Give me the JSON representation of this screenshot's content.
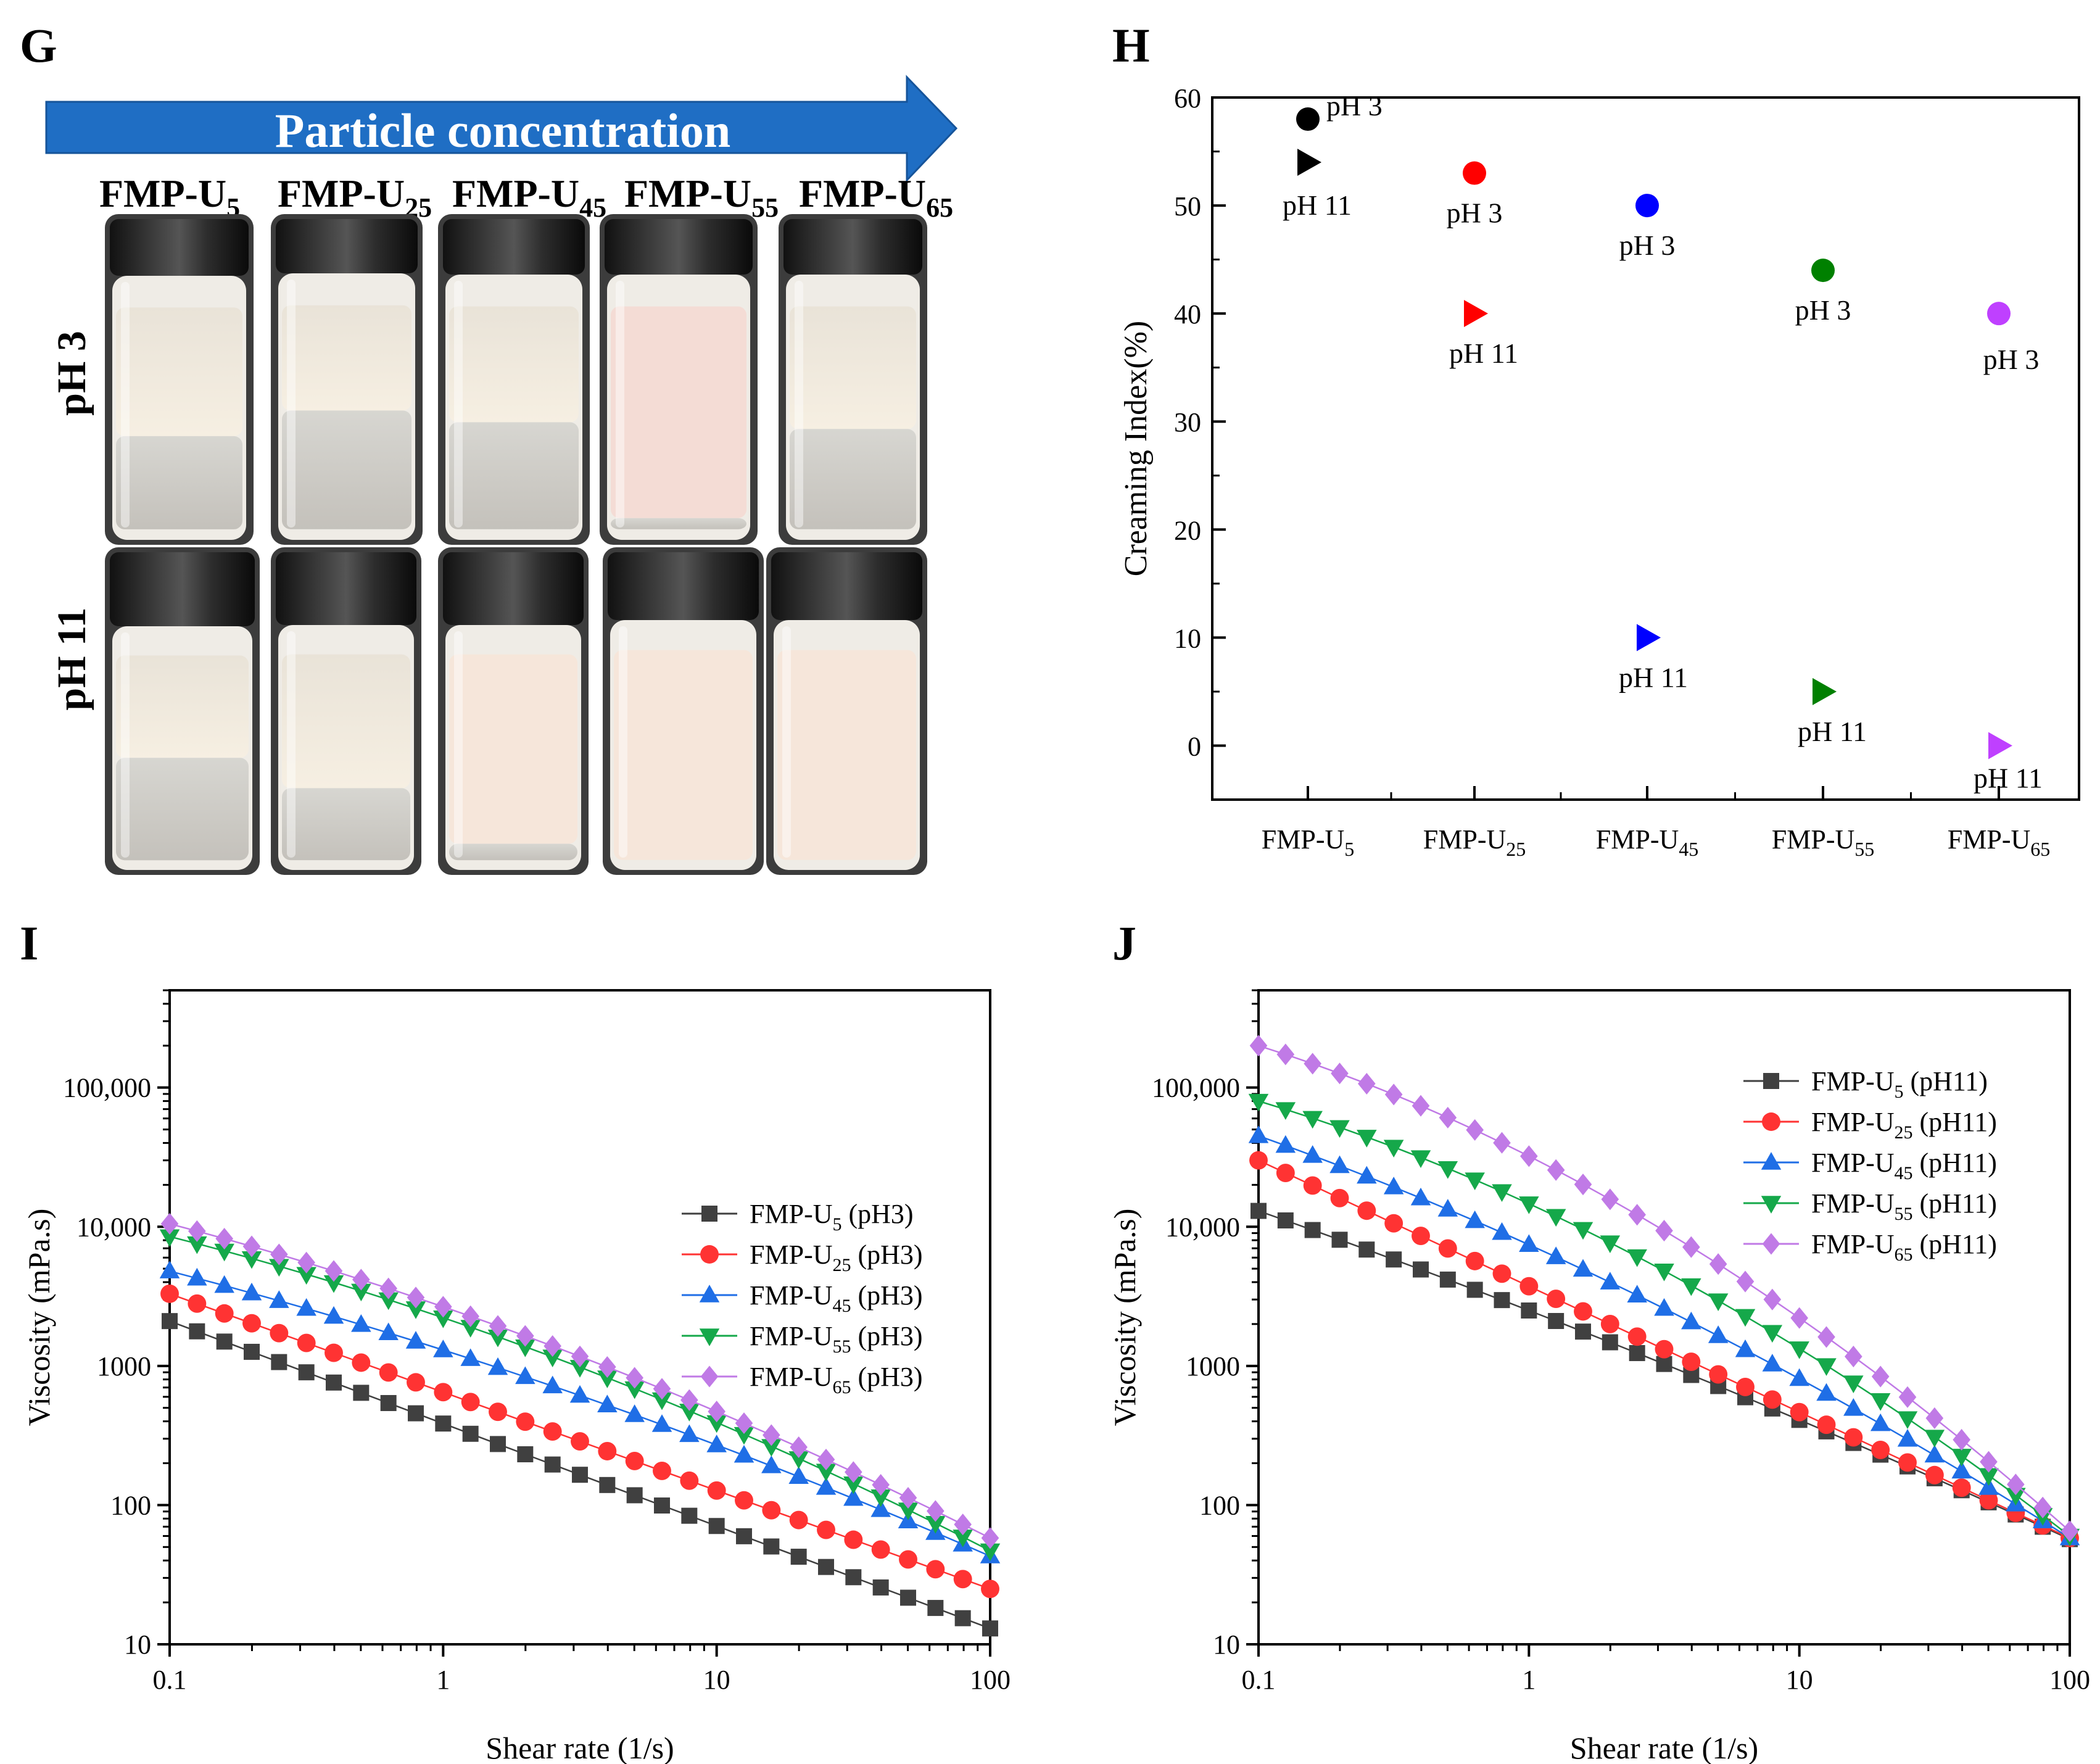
{
  "panels": {
    "G": {
      "label": "G",
      "arrow_text": "Particle concentration",
      "samples": [
        {
          "base": "FMP-U",
          "sub": "5"
        },
        {
          "base": "FMP-U",
          "sub": "25"
        },
        {
          "base": "FMP-U",
          "sub": "45"
        },
        {
          "base": "FMP-U",
          "sub": "55"
        },
        {
          "base": "FMP-U",
          "sub": "65"
        }
      ],
      "rows": [
        {
          "label": "pH 3"
        },
        {
          "label": "pH 11"
        }
      ]
    },
    "H": {
      "label": "H"
    },
    "I": {
      "label": "I"
    },
    "J": {
      "label": "J"
    }
  },
  "colors": {
    "arrow": "#1f6ec4",
    "black": "#000000",
    "red": "#ff0000",
    "blue": "#0000ff",
    "green": "#008000",
    "violet": "#bf40ff",
    "series_U5": "#404040",
    "series_U25": "#ff3333",
    "series_U45": "#1f6ee6",
    "series_U55": "#15a84a",
    "series_U65": "#c07ae6"
  },
  "chart_data": [
    {
      "id": "H",
      "type": "scatter",
      "ylabel": "Creaming Index(%)",
      "xlabel": "",
      "ylim": [
        -5,
        60
      ],
      "yticks": [
        "0",
        "10",
        "20",
        "30",
        "40",
        "50",
        "60"
      ],
      "categories": [
        {
          "base": "FMP-U",
          "sub": "5"
        },
        {
          "base": "FMP-U",
          "sub": "25"
        },
        {
          "base": "FMP-U",
          "sub": "45"
        },
        {
          "base": "FMP-U",
          "sub": "55"
        },
        {
          "base": "FMP-U",
          "sub": "65"
        }
      ],
      "series": [
        {
          "name": "pH 3",
          "marker": "circle",
          "values": [
            58,
            53,
            50,
            44,
            40
          ],
          "point_labels": [
            "pH 3",
            "pH 3",
            "pH 3",
            "pH 3",
            "pH 3"
          ],
          "colors": [
            "#000000",
            "#ff0000",
            "#0000ff",
            "#008000",
            "#bf40ff"
          ]
        },
        {
          "name": "pH 11",
          "marker": "triangle-right",
          "values": [
            54,
            40,
            10,
            5,
            0
          ],
          "point_labels": [
            "pH 11",
            "pH 11",
            "pH 11",
            "pH 11",
            "pH 11"
          ],
          "colors": [
            "#000000",
            "#ff0000",
            "#0000ff",
            "#008000",
            "#bf40ff"
          ]
        }
      ]
    },
    {
      "id": "I",
      "type": "line",
      "xscale": "log",
      "yscale": "log",
      "xlabel": "Shear rate (1/s)",
      "ylabel": "Viscosity (mPa.s)",
      "xlim": [
        0.1,
        100
      ],
      "ylim": [
        10,
        500000
      ],
      "xticks": [
        {
          "v": 0.1,
          "t": "0.1"
        },
        {
          "v": 1,
          "t": "1"
        },
        {
          "v": 10,
          "t": "10"
        },
        {
          "v": 100,
          "t": "100"
        }
      ],
      "yticks": [
        {
          "v": 10,
          "t": "10"
        },
        {
          "v": 100,
          "t": "100"
        },
        {
          "v": 1000,
          "t": "1000"
        },
        {
          "v": 10000,
          "t": "10,000"
        },
        {
          "v": 100000,
          "t": "100,000"
        }
      ],
      "series": [
        {
          "base": "FMP-U",
          "sub": "5",
          "suffix": "(pH3)",
          "color": "#404040",
          "marker": "square",
          "y0": 2100,
          "y1": 13,
          "mid": 0,
          "mf": 1
        },
        {
          "base": "FMP-U",
          "sub": "25",
          "suffix": "(pH3)",
          "color": "#ff3333",
          "marker": "circle",
          "y0": 3300,
          "y1": 25,
          "mid": 60,
          "mf": 1
        },
        {
          "base": "FMP-U",
          "sub": "45",
          "suffix": "(pH3)",
          "color": "#1f6ee6",
          "marker": "triangle-up",
          "y0": 4800,
          "y1": 43,
          "mid": 0,
          "mf": 1.35
        },
        {
          "base": "FMP-U",
          "sub": "55",
          "suffix": "(pH3)",
          "color": "#15a84a",
          "marker": "triangle-down",
          "y0": 8500,
          "y1": 47,
          "mid": 0,
          "mf": 1.55
        },
        {
          "base": "FMP-U",
          "sub": "65",
          "suffix": "(pH3)",
          "color": "#c07ae6",
          "marker": "diamond",
          "y0": 10500,
          "y1": 58,
          "mid": 0,
          "mf": 1.5
        }
      ]
    },
    {
      "id": "J",
      "type": "line",
      "xscale": "log",
      "yscale": "log",
      "xlabel": "Shear rate (1/s)",
      "ylabel": "Viscosity (mPa.s)",
      "xlim": [
        0.1,
        100
      ],
      "ylim": [
        10,
        500000
      ],
      "xticks": [
        {
          "v": 0.1,
          "t": "0.1"
        },
        {
          "v": 1,
          "t": "1"
        },
        {
          "v": 10,
          "t": "10"
        },
        {
          "v": 100,
          "t": "100"
        }
      ],
      "yticks": [
        {
          "v": 10,
          "t": "10"
        },
        {
          "v": 100,
          "t": "100"
        },
        {
          "v": 1000,
          "t": "1000"
        },
        {
          "v": 10000,
          "t": "10,000"
        },
        {
          "v": 100000,
          "t": "100,000"
        }
      ],
      "series": [
        {
          "base": "FMP-U",
          "sub": "5",
          "suffix": "(pH11)",
          "color": "#404040",
          "marker": "square",
          "y0": 13000,
          "y1": 57,
          "mid": 0,
          "mf": 1.2
        },
        {
          "base": "FMP-U",
          "sub": "25",
          "suffix": "(pH11)",
          "color": "#ff3333",
          "marker": "circle",
          "y0": 30000,
          "y1": 58,
          "mid": 0,
          "mf": 1
        },
        {
          "base": "FMP-U",
          "sub": "45",
          "suffix": "(pH11)",
          "color": "#1f6ee6",
          "marker": "triangle-up",
          "y0": 45000,
          "y1": 58,
          "mid": 0,
          "mf": 1.6
        },
        {
          "base": "FMP-U",
          "sub": "55",
          "suffix": "(pH11)",
          "color": "#15a84a",
          "marker": "triangle-down",
          "y0": 80000,
          "y1": 60,
          "mid": 0,
          "mf": 2.2
        },
        {
          "base": "FMP-U",
          "sub": "65",
          "suffix": "(pH11)",
          "color": "#c07ae6",
          "marker": "diamond",
          "y0": 200000,
          "y1": 65,
          "mid": 0,
          "mf": 2.6
        }
      ]
    }
  ]
}
